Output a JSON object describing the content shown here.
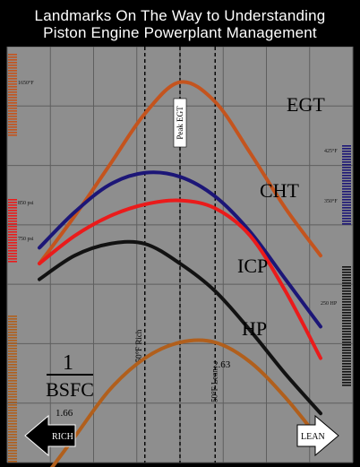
{
  "title_line1": "Landmarks On The Way to Understanding",
  "title_line2": "Piston Engine Powerplant Management",
  "colors": {
    "background": "#8e8e8e",
    "grid": "#5f5f5f",
    "egt": "#c4541e",
    "cht": "#1c1677",
    "icp": "#ea1b1b",
    "hp": "#121212",
    "bsfc": "#b15f1c",
    "rich_arrow": "#000000",
    "lean_arrow": "#ffffff"
  },
  "chart_data": {
    "type": "line",
    "x": [
      0,
      1,
      2,
      3,
      4,
      5,
      6,
      7,
      8
    ],
    "markers": [
      {
        "x": 3.0,
        "label": "50°F Rich"
      },
      {
        "x": 4.0,
        "label": "Peak EGT"
      },
      {
        "x": 5.0,
        "label": "50°F Lean"
      }
    ],
    "series": [
      {
        "key": "egt",
        "name": "EGT",
        "values": [
          100,
          160,
          225,
          290,
          330,
          305,
          240,
          170,
          110
        ]
      },
      {
        "key": "cht",
        "name": "CHT",
        "values": [
          120,
          165,
          200,
          215,
          210,
          185,
          140,
          80,
          20
        ]
      },
      {
        "key": "icp",
        "name": "ICP",
        "values": [
          100,
          135,
          160,
          175,
          180,
          170,
          135,
          65,
          -20
        ]
      },
      {
        "key": "hp",
        "name": "HP",
        "values": [
          80,
          110,
          125,
          125,
          100,
          65,
          15,
          -40,
          -90
        ]
      },
      {
        "key": "bsfc",
        "name": "1/BSFC",
        "values": [
          -180,
          -120,
          -60,
          -20,
          0,
          0,
          -25,
          -70,
          -125
        ]
      }
    ],
    "annotations": [
      {
        "text": "1.66",
        "x": 0.7
      },
      {
        "text": "2.63",
        "x": 4.7
      }
    ],
    "scale_labels": [
      {
        "text": "1650°F",
        "side": "left"
      },
      {
        "text": "850 psi",
        "side": "left"
      },
      {
        "text": "750 psi",
        "side": "left"
      },
      {
        "text": "425°F",
        "side": "right"
      },
      {
        "text": "350°F",
        "side": "right"
      },
      {
        "text": "250 HP",
        "side": "right"
      }
    ],
    "bsfc_label": {
      "numerator": "1",
      "denominator": "BSFC"
    },
    "arrows": {
      "left": "RICH",
      "right": "LEAN"
    },
    "grid": true
  }
}
